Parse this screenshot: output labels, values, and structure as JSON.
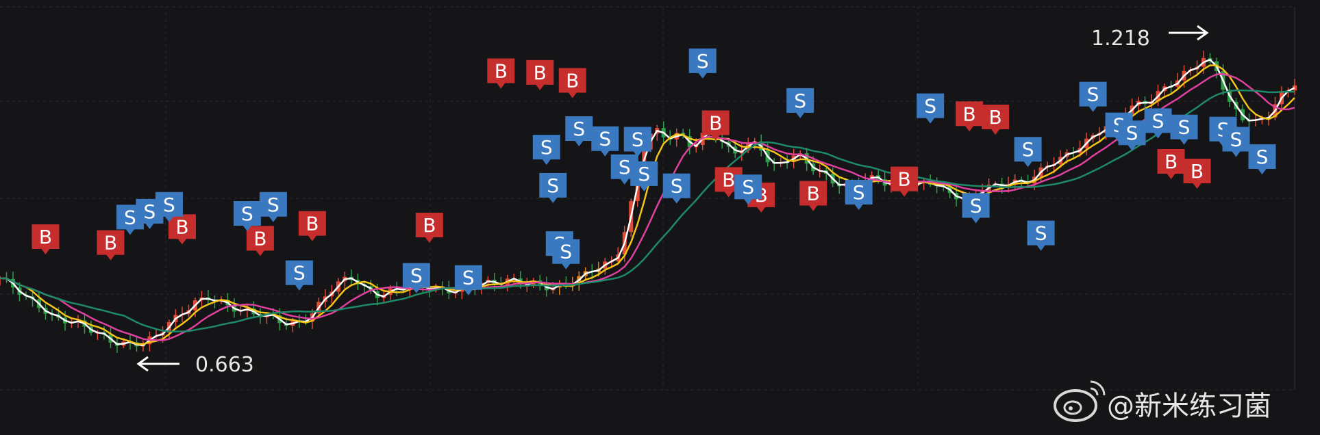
{
  "chart_data": {
    "type": "line",
    "price_high_label": "1.218",
    "price_low_label": "0.663",
    "markers": {
      "buy_text": "B",
      "sell_text": "S",
      "buy_color": "#c62d2d",
      "sell_color": "#3a78c0"
    },
    "ma_colors": [
      "#ffffff",
      "#f5c518",
      "#e040a0",
      "#1f8a6a"
    ],
    "candle_colors": {
      "up": "#e04a36",
      "down": "#2f9e4a",
      "surge": "#e0801e"
    },
    "grid": true,
    "series": [
      {
        "key": "price",
        "values": [
          0.79,
          0.77,
          0.75,
          0.74,
          0.72,
          0.71,
          0.7,
          0.69,
          0.68,
          0.67,
          0.665,
          0.663,
          0.68,
          0.71,
          0.73,
          0.745,
          0.75,
          0.74,
          0.735,
          0.73,
          0.72,
          0.71,
          0.7,
          0.71,
          0.73,
          0.76,
          0.78,
          0.79,
          0.77,
          0.76,
          0.765,
          0.77,
          0.775,
          0.775,
          0.77,
          0.765,
          0.77,
          0.78,
          0.785,
          0.79,
          0.78,
          0.775,
          0.77,
          0.78,
          0.79,
          0.8,
          0.81,
          0.82,
          0.9,
          1.03,
          1.07,
          1.05,
          1.06,
          1.04,
          1.07,
          1.05,
          1.02,
          1.04,
          1.05,
          1.0,
          1.01,
          1.02,
          1.0,
          0.99,
          0.97,
          0.96,
          0.97,
          0.98,
          0.97,
          0.98,
          0.96,
          0.97,
          0.96,
          0.95,
          0.94,
          0.955,
          0.96,
          0.97,
          0.975,
          0.98,
          1.0,
          1.01,
          1.03,
          1.05,
          1.07,
          1.08,
          1.1,
          1.12,
          1.13,
          1.15,
          1.16,
          1.18,
          1.205,
          1.19,
          1.12,
          1.09,
          1.08,
          1.1,
          1.14,
          1.16
        ]
      }
    ],
    "buy_signals": [
      [
        7,
        0.863
      ],
      [
        17,
        0.852
      ],
      [
        28,
        0.882
      ],
      [
        40,
        0.86
      ],
      [
        48,
        0.888
      ],
      [
        66,
        0.885
      ],
      [
        77,
        1.176
      ],
      [
        83,
        1.173
      ],
      [
        88,
        1.158
      ],
      [
        110,
        1.078
      ],
      [
        112,
        0.971
      ],
      [
        117,
        0.942
      ],
      [
        125,
        0.945
      ],
      [
        139,
        0.972
      ],
      [
        149,
        1.095
      ],
      [
        153,
        1.089
      ],
      [
        180,
        1.005
      ],
      [
        184,
        0.987
      ]
    ],
    "sell_signals": [
      [
        20,
        0.9
      ],
      [
        23,
        0.911
      ],
      [
        26,
        0.924
      ],
      [
        38,
        0.907
      ],
      [
        42,
        0.924
      ],
      [
        46,
        0.795
      ],
      [
        64,
        0.79
      ],
      [
        72,
        0.786
      ],
      [
        84,
        1.032
      ],
      [
        85,
        0.96
      ],
      [
        86,
        0.85
      ],
      [
        87,
        0.835
      ],
      [
        89,
        1.067
      ],
      [
        93,
        1.048
      ],
      [
        96,
        0.995
      ],
      [
        98,
        1.047
      ],
      [
        99,
        0.982
      ],
      [
        104,
        0.959
      ],
      [
        108,
        1.195
      ],
      [
        115,
        0.957
      ],
      [
        123,
        1.12
      ],
      [
        132,
        0.947
      ],
      [
        143,
        1.11
      ],
      [
        150,
        0.922
      ],
      [
        158,
        1.028
      ],
      [
        160,
        0.87
      ],
      [
        168,
        1.132
      ],
      [
        172,
        1.074
      ],
      [
        174,
        1.059
      ],
      [
        178,
        1.082
      ],
      [
        182,
        1.07
      ],
      [
        188,
        1.066
      ],
      [
        190,
        1.047
      ],
      [
        194,
        1.014
      ]
    ]
  },
  "watermark": {
    "handle": "@新米练习菌"
  }
}
